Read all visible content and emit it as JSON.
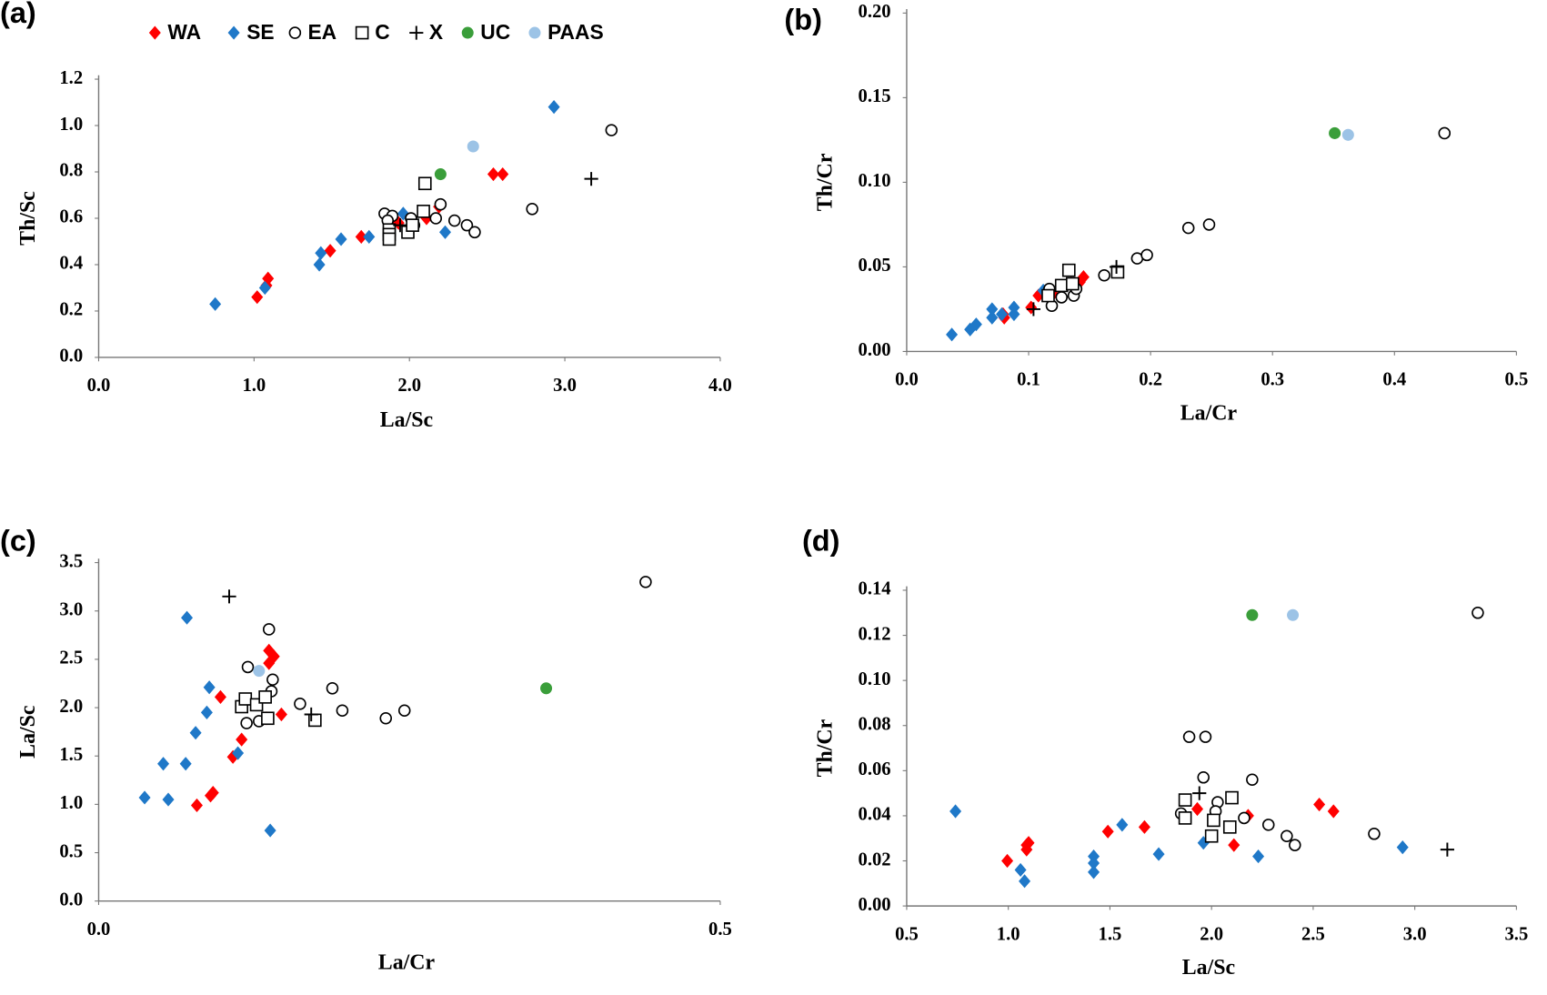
{
  "chart_data": [
    {
      "type": "scatter",
      "label": "(a)",
      "x_label": "La/Sc",
      "y_label": "Th/Sc",
      "legend": "top",
      "xlim": [
        0,
        4
      ],
      "ylim": [
        0,
        1.2
      ],
      "xticks": [
        {
          "value": 0,
          "label": "0.0"
        },
        {
          "value": 1,
          "label": "1.0"
        },
        {
          "value": 2,
          "label": "2.0"
        },
        {
          "value": 3,
          "label": "3.0"
        },
        {
          "value": 4,
          "label": "4.0"
        }
      ],
      "yticks": [
        {
          "value": 0,
          "label": "0.0"
        },
        0.2,
        0.4,
        0.6,
        0.8,
        {
          "value": 1,
          "label": "1.0"
        },
        1.2
      ],
      "series": [
        {
          "name": "WA",
          "color": "#ff0000",
          "marker": "diamond",
          "x": [
            1.02,
            1.09,
            1.08,
            1.49,
            1.69,
            1.93,
            2.11,
            2.19,
            2.54,
            2.6
          ],
          "values": [
            0.26,
            0.34,
            0.31,
            0.46,
            0.52,
            0.58,
            0.6,
            0.65,
            0.79,
            0.79
          ]
        },
        {
          "name": "SE",
          "color": "#1f78c8",
          "marker": "diamond",
          "x": [
            0.75,
            1.07,
            1.42,
            1.43,
            1.56,
            1.74,
            1.96,
            2.23,
            2.93
          ],
          "values": [
            0.23,
            0.3,
            0.4,
            0.45,
            0.51,
            0.52,
            0.62,
            0.54,
            1.08
          ]
        },
        {
          "name": "EA",
          "color": "#000000",
          "marker": "open-circle",
          "x": [
            1.84,
            1.89,
            1.86,
            2.01,
            2.03,
            2.17,
            2.2,
            2.29,
            2.37,
            2.42,
            2.79,
            3.3
          ],
          "values": [
            0.62,
            0.61,
            0.59,
            0.6,
            0.57,
            0.6,
            0.66,
            0.59,
            0.57,
            0.54,
            0.64,
            0.98
          ]
        },
        {
          "name": "C",
          "color": "#000000",
          "marker": "open-square",
          "x": [
            1.87,
            1.87,
            1.87,
            1.99,
            2.02,
            2.09,
            2.1
          ],
          "values": [
            0.55,
            0.53,
            0.51,
            0.54,
            0.57,
            0.63,
            0.75
          ]
        },
        {
          "name": "X",
          "color": "#000000",
          "marker": "plus",
          "x": [
            3.17,
            1.94
          ],
          "values": [
            0.77,
            0.57
          ]
        },
        {
          "name": "UC",
          "color": "#3a9e3a",
          "marker": "circle",
          "x": [
            2.2
          ],
          "values": [
            0.79
          ]
        },
        {
          "name": "PAAS",
          "color": "#9cc3e6",
          "marker": "circle",
          "x": [
            2.41
          ],
          "values": [
            0.91
          ]
        }
      ]
    },
    {
      "type": "scatter",
      "label": "(b)",
      "x_label": "La/Cr",
      "y_label": "Th/Cr",
      "xlim": [
        0,
        0.5
      ],
      "ylim": [
        0,
        0.2
      ],
      "xticks": [
        {
          "value": 0,
          "label": "0.0"
        },
        0.1,
        0.2,
        0.3,
        0.4,
        0.5
      ],
      "yticks": [
        {
          "value": 0,
          "label": "0.00"
        },
        0.05,
        {
          "value": 0.1,
          "label": "0.10"
        },
        0.15,
        {
          "value": 0.2,
          "label": "0.20"
        }
      ],
      "series": [
        {
          "color": "#ff0000",
          "marker": "diamond",
          "x": [
            0.08,
            0.102,
            0.108,
            0.12,
            0.135,
            0.145,
            0.142,
            0.079
          ],
          "values": [
            0.02,
            0.026,
            0.033,
            0.034,
            0.04,
            0.044,
            0.041,
            0.022
          ]
        },
        {
          "color": "#1f78c8",
          "marker": "diamond",
          "x": [
            0.037,
            0.052,
            0.057,
            0.07,
            0.07,
            0.078,
            0.088,
            0.088,
            0.112
          ],
          "values": [
            0.01,
            0.013,
            0.016,
            0.02,
            0.025,
            0.022,
            0.022,
            0.026,
            0.036
          ]
        },
        {
          "color": "#000000",
          "marker": "open-circle",
          "x": [
            0.119,
            0.117,
            0.127,
            0.137,
            0.139,
            0.162,
            0.189,
            0.197,
            0.231,
            0.248,
            0.441
          ],
          "values": [
            0.027,
            0.037,
            0.032,
            0.033,
            0.037,
            0.045,
            0.055,
            0.057,
            0.073,
            0.075,
            0.129
          ]
        },
        {
          "color": "#000000",
          "marker": "open-square",
          "x": [
            0.116,
            0.127,
            0.133,
            0.136,
            0.173
          ],
          "values": [
            0.033,
            0.039,
            0.048,
            0.04,
            0.047
          ]
        },
        {
          "color": "#000000",
          "marker": "plus",
          "x": [
            0.104,
            0.172
          ],
          "values": [
            0.025,
            0.05
          ]
        },
        {
          "color": "#3a9e3a",
          "marker": "circle",
          "x": [
            0.351
          ],
          "values": [
            0.129
          ]
        },
        {
          "color": "#9cc3e6",
          "marker": "circle",
          "x": [
            0.362
          ],
          "values": [
            0.128
          ]
        }
      ]
    },
    {
      "type": "scatter",
      "label": "(c)",
      "x_label": "La/Cr",
      "y_label": "La/Sc",
      "xlim": [
        0,
        0.5
      ],
      "ylim": [
        0,
        3.5
      ],
      "xticks": [
        {
          "value": 0,
          "label": "0.0"
        },
        0.5
      ],
      "yticks": [
        {
          "value": 0,
          "label": "0.0"
        },
        0.5,
        {
          "value": 1,
          "label": "1.0"
        },
        1.5,
        {
          "value": 2,
          "label": "2.0"
        },
        2.5,
        {
          "value": 3,
          "label": "3.0"
        },
        3.5
      ],
      "series": [
        {
          "color": "#ff0000",
          "marker": "diamond",
          "x": [
            0.079,
            0.09,
            0.092,
            0.098,
            0.108,
            0.115,
            0.137,
            0.141,
            0.137,
            0.147,
            0.135
          ],
          "values": [
            0.99,
            1.09,
            1.12,
            2.11,
            1.49,
            1.67,
            2.59,
            2.53,
            2.46,
            1.93,
            1.89
          ]
        },
        {
          "color": "#1f78c8",
          "marker": "diamond",
          "x": [
            0.037,
            0.056,
            0.052,
            0.07,
            0.078,
            0.087,
            0.089,
            0.112,
            0.071,
            0.138
          ],
          "values": [
            1.07,
            1.05,
            1.42,
            1.42,
            1.74,
            1.95,
            2.21,
            1.53,
            2.93,
            0.73
          ]
        },
        {
          "color": "#000000",
          "marker": "open-circle",
          "x": [
            0.119,
            0.129,
            0.12,
            0.137,
            0.14,
            0.139,
            0.162,
            0.188,
            0.196,
            0.231,
            0.246,
            0.44
          ],
          "values": [
            1.84,
            1.86,
            2.42,
            2.81,
            2.29,
            2.17,
            2.04,
            2.2,
            1.97,
            1.89,
            1.97,
            3.3
          ]
        },
        {
          "color": "#000000",
          "marker": "open-square",
          "x": [
            0.115,
            0.118,
            0.127,
            0.136,
            0.134,
            0.174
          ],
          "values": [
            2.01,
            2.09,
            2.03,
            1.89,
            2.11,
            1.87
          ]
        },
        {
          "color": "#000000",
          "marker": "plus",
          "x": [
            0.105,
            0.171
          ],
          "values": [
            3.15,
            1.93
          ]
        },
        {
          "color": "#3a9e3a",
          "marker": "circle",
          "x": [
            0.36
          ],
          "values": [
            2.2
          ]
        },
        {
          "color": "#9cc3e6",
          "marker": "circle",
          "x": [
            0.129
          ],
          "values": [
            2.38
          ]
        }
      ]
    },
    {
      "type": "scatter",
      "label": "(d)",
      "x_label": "La/Sc",
      "y_label": "Th/Cr",
      "xlim": [
        0.5,
        3.5
      ],
      "ylim": [
        0,
        0.14
      ],
      "xticks": [
        0.5,
        {
          "value": 1,
          "label": "1.0"
        },
        1.5,
        {
          "value": 2,
          "label": "2.0"
        },
        2.5,
        {
          "value": 3,
          "label": "3.0"
        },
        3.5
      ],
      "yticks": [
        {
          "value": 0,
          "label": "0.00"
        },
        0.02,
        0.04,
        0.06,
        0.08,
        {
          "value": 0.1,
          "label": "0.10"
        },
        0.12,
        0.14
      ],
      "series": [
        {
          "color": "#ff0000",
          "marker": "diamond",
          "x": [
            0.995,
            1.09,
            1.1,
            1.09,
            1.49,
            1.67,
            1.93,
            2.11,
            2.18,
            2.53,
            2.6
          ],
          "values": [
            0.02,
            0.025,
            0.028,
            0.027,
            0.033,
            0.035,
            0.043,
            0.027,
            0.04,
            0.045,
            0.042
          ]
        },
        {
          "color": "#1f78c8",
          "marker": "diamond",
          "x": [
            0.74,
            1.06,
            1.08,
            1.42,
            1.42,
            1.42,
            1.56,
            1.74,
            1.96,
            2.23,
            2.94
          ],
          "values": [
            0.042,
            0.016,
            0.011,
            0.022,
            0.019,
            0.015,
            0.036,
            0.023,
            0.028,
            0.022,
            0.026
          ]
        },
        {
          "color": "#000000",
          "marker": "open-circle",
          "x": [
            1.85,
            1.87,
            1.89,
            1.97,
            1.96,
            2.03,
            2.02,
            2.16,
            2.2,
            2.28,
            2.37,
            2.41,
            2.8,
            3.31
          ],
          "values": [
            0.041,
            0.039,
            0.075,
            0.075,
            0.057,
            0.046,
            0.042,
            0.039,
            0.056,
            0.036,
            0.031,
            0.027,
            0.032,
            0.13
          ]
        },
        {
          "color": "#000000",
          "marker": "open-square",
          "x": [
            1.87,
            1.87,
            2.01,
            2.0,
            2.09,
            2.1
          ],
          "values": [
            0.047,
            0.039,
            0.038,
            0.031,
            0.035,
            0.048
          ]
        },
        {
          "color": "#000000",
          "marker": "plus",
          "x": [
            1.94,
            3.16
          ],
          "values": [
            0.05,
            0.025
          ]
        },
        {
          "color": "#3a9e3a",
          "marker": "circle",
          "x": [
            2.2
          ],
          "values": [
            0.129
          ]
        },
        {
          "color": "#9cc3e6",
          "marker": "circle",
          "x": [
            2.4
          ],
          "values": [
            0.129
          ]
        }
      ]
    }
  ]
}
